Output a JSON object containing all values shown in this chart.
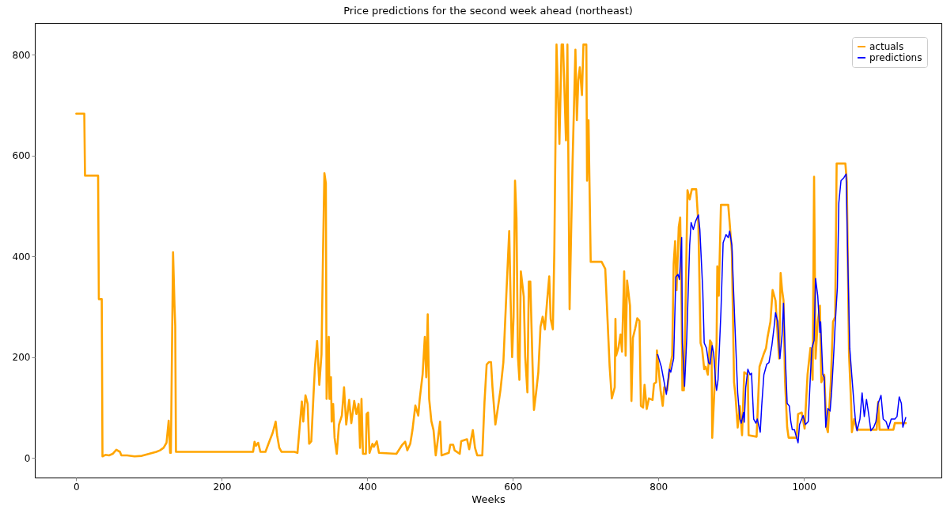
{
  "chart_data": {
    "type": "line",
    "title": "Price predictions for the second week ahead (northeast)",
    "xlabel": "Weeks",
    "xlim": [
      -57,
      1189
    ],
    "xticks": [
      0,
      200,
      400,
      600,
      800,
      {
        "value": 1000,
        "label": "1000"
      }
    ],
    "ylim": [
      -39,
      863
    ],
    "yticks": [
      0,
      200,
      400,
      600,
      800
    ],
    "grid": false,
    "legend": "top right",
    "series": [
      {
        "name": "actuals",
        "color": "#ffa500",
        "x": [
          0,
          11,
          12,
          30,
          31,
          35,
          36,
          40,
          45,
          50,
          55,
          60,
          62,
          70,
          80,
          90,
          100,
          110,
          115,
          120,
          124,
          127,
          129,
          130,
          133,
          135,
          136,
          137,
          150,
          200,
          243,
          245,
          247,
          250,
          253,
          260,
          266,
          270,
          274,
          276,
          279,
          282,
          300,
          304,
          310,
          312,
          315,
          318,
          320,
          323,
          326,
          328,
          331,
          334,
          337,
          339,
          341,
          343,
          344,
          347,
          348,
          350,
          351,
          353,
          355,
          358,
          361,
          365,
          368,
          371,
          375,
          378,
          382,
          385,
          388,
          390,
          392,
          394,
          398,
          399,
          401,
          403,
          407,
          409,
          413,
          416,
          440,
          448,
          452,
          455,
          459,
          462,
          466,
          470,
          472,
          476,
          479,
          481,
          483,
          485,
          488,
          491,
          494,
          496,
          500,
          502,
          508,
          512,
          514,
          518,
          520,
          527,
          529,
          537,
          540,
          545,
          548,
          551,
          558,
          561,
          564,
          567,
          570,
          572,
          576,
          579,
          583,
          587,
          591,
          595,
          597,
          599,
          601,
          603,
          605,
          607,
          609,
          611,
          615,
          617,
          620,
          622,
          624,
          627,
          629,
          632,
          635,
          638,
          641,
          644,
          647,
          650,
          652,
          655,
          657,
          660,
          664,
          667,
          669,
          673,
          675,
          678,
          682,
          686,
          688,
          690,
          692,
          695,
          697,
          701,
          702,
          704,
          707,
          722,
          727,
          733,
          736,
          740,
          741,
          742,
          745,
          748,
          750,
          753,
          755,
          757,
          761,
          763,
          765,
          768,
          771,
          774,
          776,
          779,
          781,
          784,
          787,
          792,
          794,
          797,
          798,
          800,
          803,
          806,
          808,
          812,
          816,
          819,
          821,
          823,
          825,
          828,
          830,
          832,
          833,
          835,
          837,
          840,
          843,
          846,
          852,
          855,
          858,
          860,
          863,
          865,
          868,
          871,
          873,
          874,
          877,
          880,
          881,
          883,
          886,
          896,
          897,
          901,
          904,
          906,
          909,
          912,
          915,
          918,
          923,
          924,
          935,
          939,
          945,
          948,
          950,
          954,
          957,
          961,
          965,
          966,
          968,
          970,
          972,
          974,
          977,
          979,
          990,
          992,
          997,
          1001,
          1005,
          1009,
          1012,
          1014,
          1016,
          1019,
          1022,
          1024,
          1028,
          1031,
          1033,
          1037,
          1040,
          1043,
          1045,
          1057,
          1059,
          1062,
          1065,
          1066,
          1069,
          1073,
          1100,
          1102,
          1104,
          1123,
          1125,
          1140
        ],
        "values": [
          683,
          683,
          560,
          560,
          315,
          315,
          3,
          6,
          5,
          8,
          16,
          12,
          5,
          5,
          3,
          4,
          8,
          12,
          15,
          20,
          30,
          74,
          10,
          10,
          408,
          302,
          262,
          12,
          12,
          12,
          12,
          32,
          24,
          30,
          12,
          12,
          35,
          50,
          72,
          45,
          20,
          12,
          12,
          10,
          112,
          72,
          124,
          107,
          28,
          33,
          124,
          180,
          232,
          145,
          205,
          397,
          565,
          545,
          117,
          240,
          117,
          160,
          72,
          107,
          40,
          8,
          66,
          84,
          140,
          66,
          115,
          69,
          113,
          87,
          107,
          20,
          117,
          8,
          8,
          87,
          90,
          10,
          28,
          22,
          33,
          10,
          8,
          26,
          32,
          15,
          28,
          55,
          104,
          84,
          117,
          166,
          240,
          160,
          285,
          117,
          73,
          55,
          5,
          26,
          72,
          5,
          8,
          10,
          26,
          26,
          15,
          8,
          33,
          37,
          17,
          55,
          20,
          5,
          5,
          110,
          185,
          190,
          190,
          140,
          66,
          95,
          135,
          190,
          322,
          450,
          310,
          200,
          280,
          550,
          475,
          200,
          155,
          370,
          320,
          200,
          130,
          350,
          350,
          188,
          95,
          130,
          170,
          260,
          280,
          255,
          310,
          360,
          275,
          255,
          410,
          820,
          623,
          820,
          820,
          630,
          820,
          295,
          582,
          810,
          670,
          750,
          775,
          720,
          820,
          820,
          550,
          670,
          389,
          389,
          375,
          182,
          118,
          140,
          276,
          203,
          218,
          245,
          211,
          370,
          203,
          352,
          302,
          113,
          238,
          256,
          277,
          272,
          103,
          100,
          145,
          97,
          118,
          115,
          147,
          150,
          213,
          181,
          134,
          103,
          140,
          134,
          181,
          203,
          385,
          430,
          333,
          458,
          477,
          291,
          134,
          134,
          270,
          531,
          513,
          533,
          533,
          463,
          228,
          218,
          176,
          181,
          165,
          233,
          228,
          40,
          134,
          228,
          380,
          322,
          502,
          502,
          484,
          410,
          150,
          123,
          60,
          103,
          45,
          170,
          165,
          45,
          42,
          181,
          207,
          218,
          239,
          270,
          333,
          312,
          218,
          197,
          367,
          333,
          312,
          155,
          61,
          40,
          40,
          87,
          90,
          58,
          165,
          218,
          155,
          558,
          197,
          270,
          302,
          150,
          165,
          61,
          51,
          150,
          270,
          280,
          584,
          584,
          548,
          207,
          103,
          51,
          77,
          56,
          56,
          111,
          56,
          56,
          69,
          69
        ]
      },
      {
        "name": "predictions",
        "color": "#0000ff",
        "x": [
          799,
          804,
          808,
          811,
          815,
          817,
          821,
          824,
          827,
          829,
          832,
          833,
          836,
          839,
          843,
          845,
          848,
          851,
          855,
          857,
          861,
          863,
          866,
          869,
          871,
          874,
          876,
          879,
          880,
          882,
          886,
          889,
          893,
          896,
          898,
          901,
          905,
          909,
          912,
          914,
          917,
          918,
          920,
          923,
          926,
          928,
          931,
          934,
          936,
          940,
          942,
          945,
          949,
          952,
          956,
          959,
          961,
          964,
          967,
          970,
          972,
          975,
          977,
          980,
          982,
          984,
          987,
          990,
          992,
          994,
          999,
          1002,
          1006,
          1009,
          1011,
          1014,
          1016,
          1019,
          1022,
          1023,
          1026,
          1028,
          1030,
          1033,
          1036,
          1038,
          1041,
          1043,
          1046,
          1048,
          1051,
          1055,
          1058,
          1060,
          1063,
          1066,
          1069,
          1071,
          1073,
          1077,
          1080,
          1083,
          1086,
          1089,
          1092,
          1096,
          1099,
          1102,
          1106,
          1109,
          1113,
          1116,
          1120,
          1125,
          1128,
          1131,
          1134,
          1136,
          1140
        ],
        "values": [
          205,
          181,
          150,
          126,
          176,
          170,
          197,
          359,
          364,
          354,
          437,
          228,
          142,
          238,
          422,
          467,
          453,
          469,
          482,
          453,
          333,
          228,
          218,
          189,
          186,
          223,
          207,
          145,
          134,
          155,
          291,
          427,
          443,
          437,
          450,
          422,
          270,
          129,
          77,
          69,
          90,
          71,
          139,
          176,
          165,
          168,
          77,
          69,
          77,
          51,
          103,
          165,
          186,
          189,
          223,
          259,
          288,
          270,
          197,
          244,
          307,
          181,
          108,
          103,
          72,
          56,
          56,
          40,
          30,
          66,
          84,
          66,
          72,
          165,
          218,
          233,
          356,
          322,
          249,
          270,
          165,
          160,
          61,
          98,
          93,
          129,
          207,
          265,
          338,
          506,
          550,
          556,
          563,
          416,
          218,
          160,
          105,
          72,
          54,
          77,
          129,
          82,
          116,
          87,
          54,
          61,
          72,
          108,
          124,
          77,
          72,
          58,
          77,
          77,
          82,
          121,
          108,
          61,
          80
        ]
      }
    ]
  }
}
